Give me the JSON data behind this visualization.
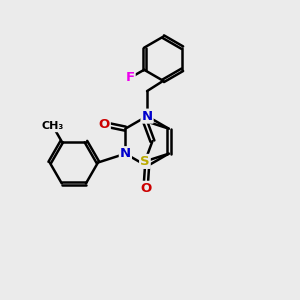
{
  "background_color": "#ebebeb",
  "atom_colors": {
    "C": "#000000",
    "N": "#0000cc",
    "O": "#cc0000",
    "S": "#bbaa00",
    "F": "#ee00ee"
  },
  "bond_color": "#000000",
  "bond_width": 1.8,
  "figsize": [
    3.0,
    3.0
  ],
  "dpi": 100
}
